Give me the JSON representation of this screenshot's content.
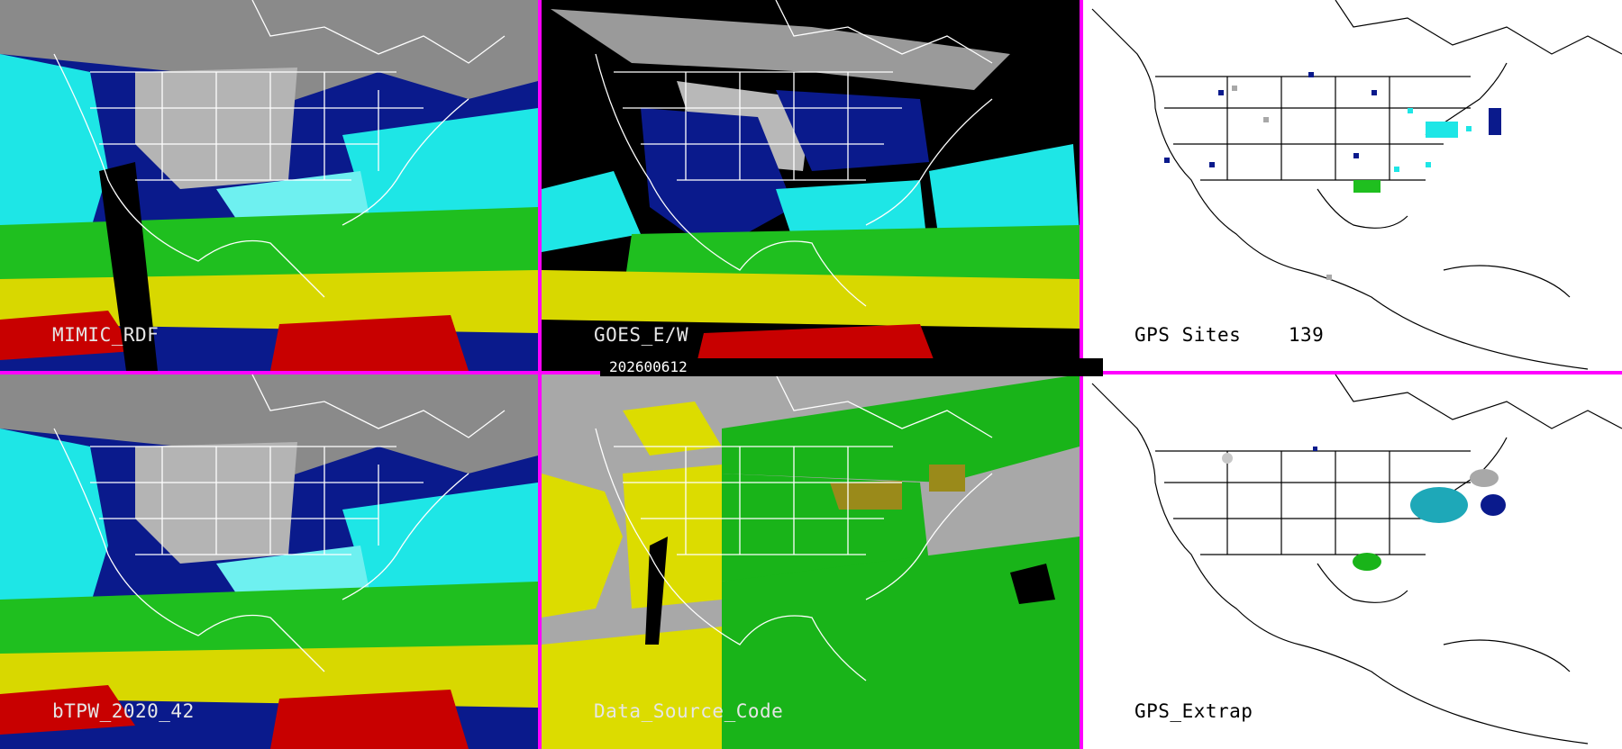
{
  "date_stamp": "202600612",
  "panels": {
    "mimic": {
      "label": "MIMIC_RDF"
    },
    "goes": {
      "label": "GOES_E/W"
    },
    "gps_sites": {
      "label": "GPS Sites",
      "count": "139"
    },
    "btpw": {
      "label": "bTPW_2020_42"
    },
    "data_source": {
      "label": "Data_Source_Code"
    },
    "gps_extrap": {
      "label": "GPS_Extrap"
    }
  },
  "colors": {
    "divider": "#ff00ff",
    "tpw_dry_gray": "#9a9a9a",
    "tpw_navy": "#0a1a8c",
    "tpw_cyan": "#1ee6e6",
    "tpw_green": "#1fbf1f",
    "tpw_yellow": "#d8d800",
    "tpw_red": "#c80000",
    "source_gray": "#a8a8a8",
    "source_yellow": "#dcdc00",
    "source_green": "#19b419",
    "source_olive": "#9a8a1a"
  },
  "icons": [
    "state-boundary-lines",
    "coastline-outline"
  ]
}
